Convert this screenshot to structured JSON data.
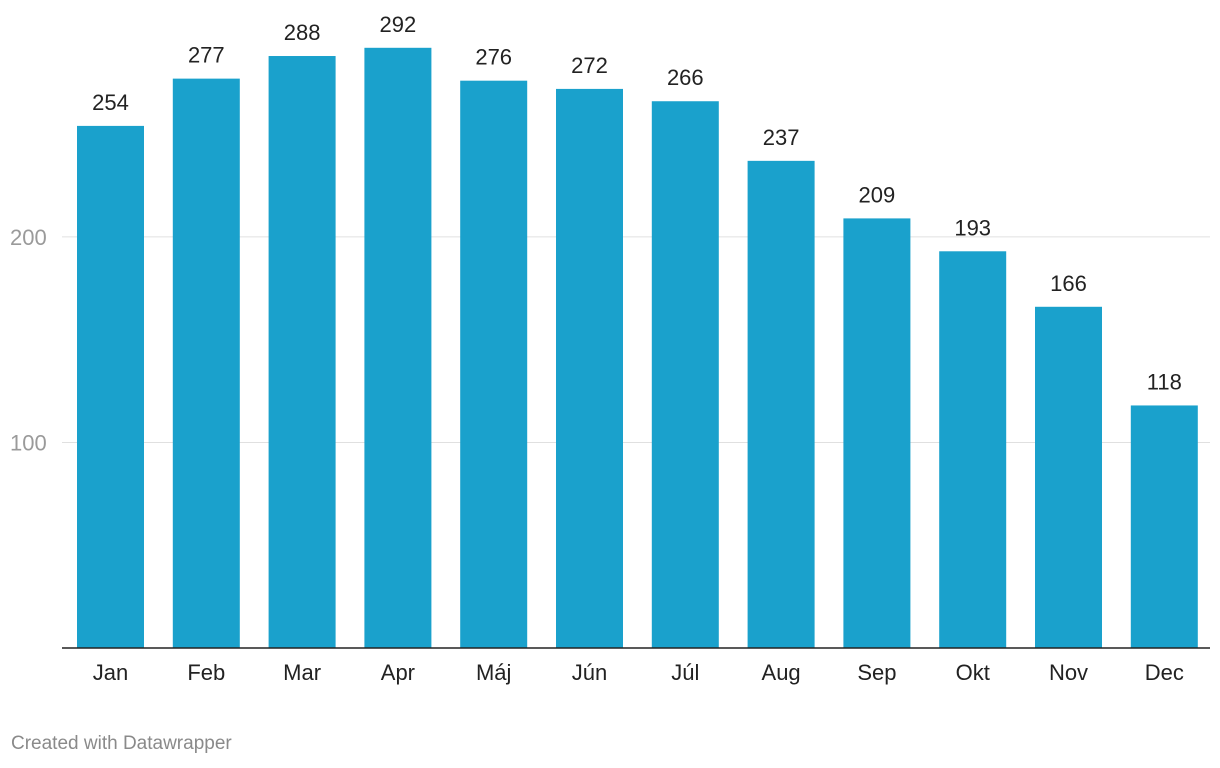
{
  "chart_data": {
    "type": "bar",
    "categories": [
      "Jan",
      "Feb",
      "Mar",
      "Apr",
      "Máj",
      "Jún",
      "Júl",
      "Aug",
      "Sep",
      "Okt",
      "Nov",
      "Dec"
    ],
    "values": [
      254,
      277,
      288,
      292,
      276,
      272,
      266,
      237,
      209,
      193,
      166,
      118
    ],
    "yticks": [
      100,
      200
    ],
    "ylim": [
      0,
      300
    ],
    "grid": true,
    "data_labels": true,
    "bar_color": "#1aa1cc",
    "title": "",
    "xlabel": "",
    "ylabel": ""
  },
  "credit": "Created with Datawrapper"
}
